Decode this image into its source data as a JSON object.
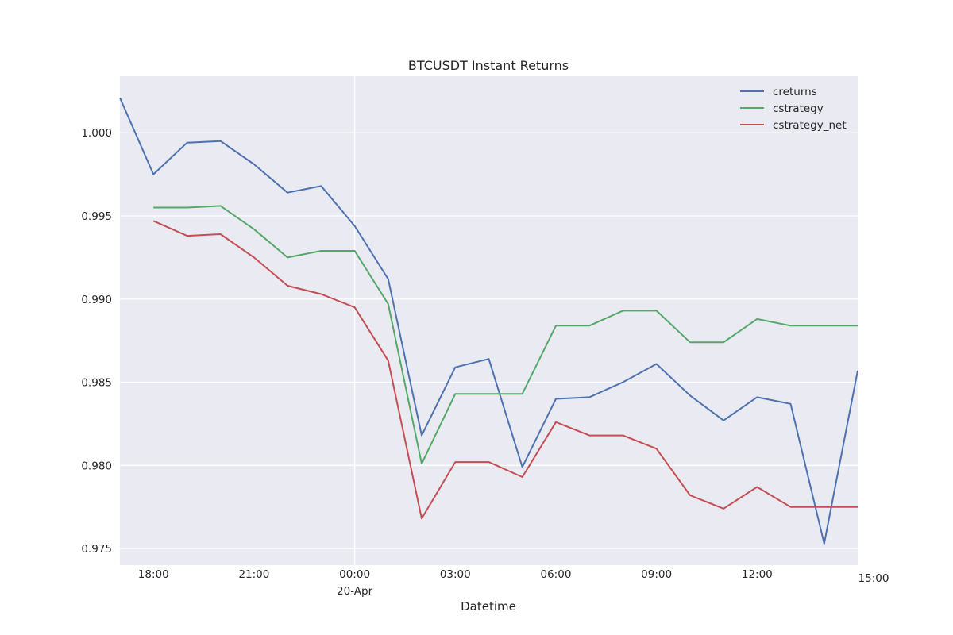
{
  "chart_data": {
    "type": "line",
    "title": "BTCUSDT Instant Returns",
    "xlabel": "Datetime",
    "ylabel": "",
    "x": [
      "04-19 17:00",
      "04-19 18:00",
      "04-19 19:00",
      "04-19 20:00",
      "04-19 21:00",
      "04-19 22:00",
      "04-19 23:00",
      "04-20 00:00",
      "04-20 01:00",
      "04-20 02:00",
      "04-20 03:00",
      "04-20 04:00",
      "04-20 05:00",
      "04-20 06:00",
      "04-20 07:00",
      "04-20 08:00",
      "04-20 09:00",
      "04-20 10:00",
      "04-20 11:00",
      "04-20 12:00",
      "04-20 13:00",
      "04-20 14:00",
      "04-20 15:00"
    ],
    "xlim": [
      "04-19 17:00",
      "04-20 15:00"
    ],
    "ylim": [
      0.974,
      1.0034
    ],
    "x_ticks": [
      {
        "x": "04-19 18:00",
        "label": "18:00"
      },
      {
        "x": "04-19 21:00",
        "label": "21:00"
      },
      {
        "x": "04-20 00:00",
        "label": "00:00",
        "sublabel": "20-Apr"
      },
      {
        "x": "04-20 03:00",
        "label": "03:00"
      },
      {
        "x": "04-20 06:00",
        "label": "06:00"
      },
      {
        "x": "04-20 09:00",
        "label": "09:00"
      },
      {
        "x": "04-20 12:00",
        "label": "12:00"
      },
      {
        "x": "04-20 15:00",
        "label": "15:00"
      }
    ],
    "y_ticks": [
      0.975,
      0.98,
      0.985,
      0.99,
      0.995,
      1.0
    ],
    "y_tick_labels": [
      "0.975",
      "0.980",
      "0.985",
      "0.990",
      "0.995",
      "1.000"
    ],
    "grid": true,
    "legend_position": "top-right",
    "series": [
      {
        "name": "creturns",
        "color": "#4c72b0",
        "values": [
          1.0021,
          0.9975,
          0.9994,
          0.9995,
          0.9981,
          0.9964,
          0.9968,
          0.9944,
          0.9912,
          0.9818,
          0.9859,
          0.9864,
          0.9799,
          0.984,
          0.9841,
          0.985,
          0.9861,
          0.9842,
          0.9827,
          0.9841,
          0.9837,
          0.9753,
          0.9857
        ]
      },
      {
        "name": "cstrategy",
        "color": "#55a868",
        "values": [
          null,
          0.9955,
          0.9955,
          0.9956,
          0.9942,
          0.9925,
          0.9929,
          0.9929,
          0.9897,
          0.9801,
          0.9843,
          0.9843,
          0.9843,
          0.9884,
          0.9884,
          0.9893,
          0.9893,
          0.9874,
          0.9874,
          0.9888,
          0.9884,
          0.9884,
          0.9884
        ]
      },
      {
        "name": "cstrategy_net",
        "color": "#c44e52",
        "values": [
          null,
          0.9947,
          0.9938,
          0.9939,
          0.9925,
          0.9908,
          0.9903,
          0.9895,
          0.9863,
          0.9768,
          0.9802,
          0.9802,
          0.9793,
          0.9826,
          0.9818,
          0.9818,
          0.981,
          0.9782,
          0.9774,
          0.9787,
          0.9775,
          0.9775,
          0.9775
        ]
      }
    ]
  }
}
